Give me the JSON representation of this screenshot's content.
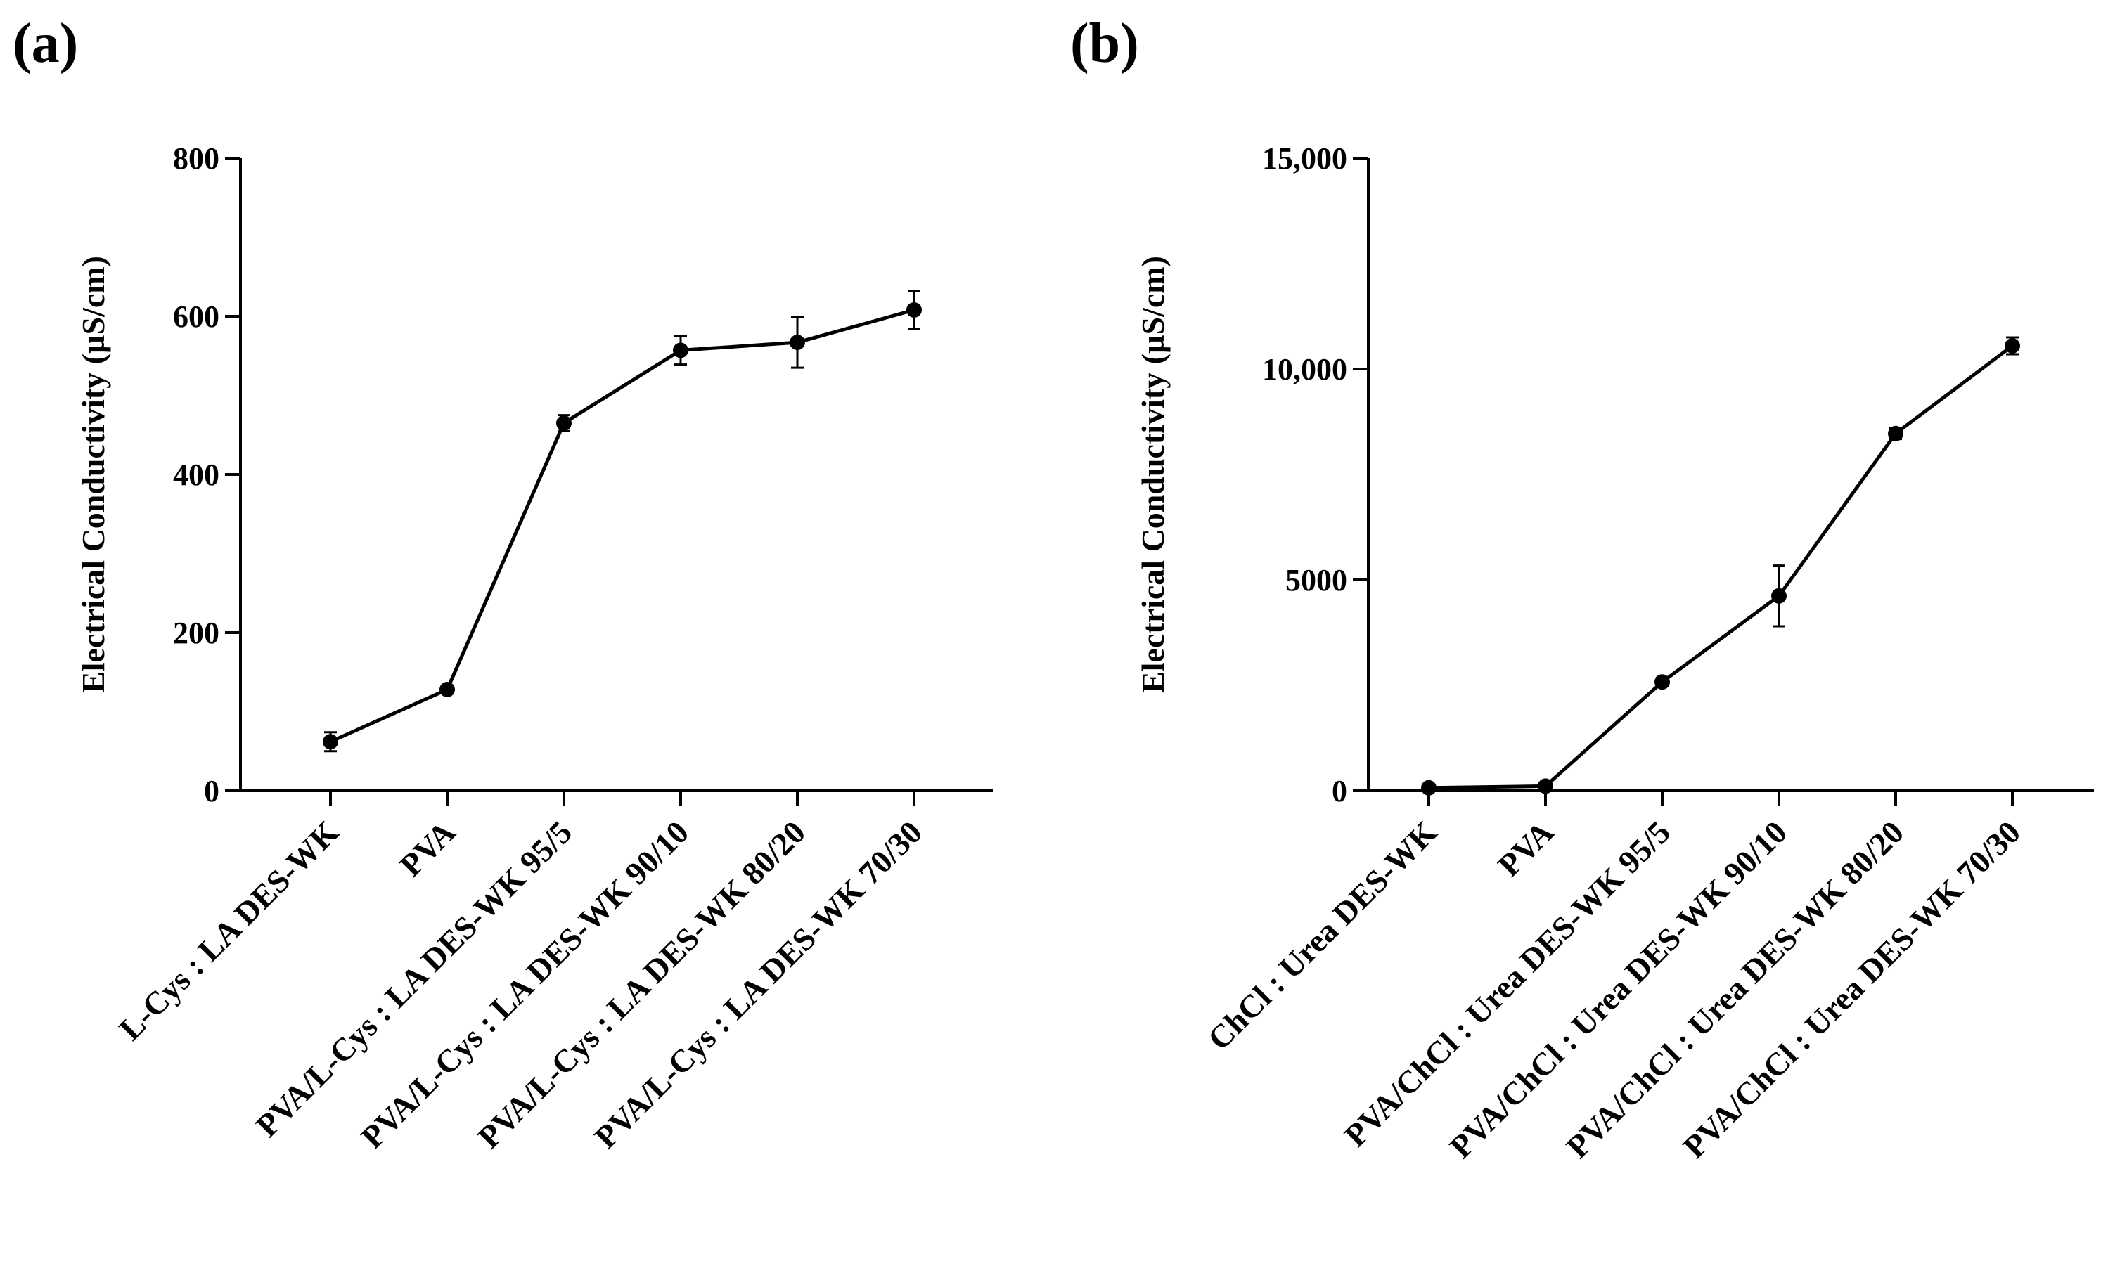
{
  "figure": {
    "panels": [
      {
        "label": "(a)"
      },
      {
        "label": "(b)"
      }
    ]
  },
  "chart_data": [
    {
      "type": "line",
      "panel": "(a)",
      "title": "",
      "xlabel": "",
      "ylabel": "Electrical Conductivity (µS/cm)",
      "ylim": [
        0,
        800
      ],
      "yticks": [
        0,
        200,
        400,
        600,
        800
      ],
      "ytick_labels": [
        "0",
        "200",
        "400",
        "600",
        "800"
      ],
      "categories": [
        "L-Cys : LA DES-WK",
        "PVA",
        "PVA/L-Cys : LA DES-WK 95/5",
        "PVA/L-Cys : LA DES-WK 90/10",
        "PVA/L-Cys : LA DES-WK 80/20",
        "PVA/L-Cys : LA DES-WK 70/30"
      ],
      "values": [
        62,
        128,
        465,
        557,
        567,
        608
      ],
      "errors": [
        12,
        5,
        10,
        18,
        32,
        24
      ],
      "grid": false,
      "legend": "none"
    },
    {
      "type": "line",
      "panel": "(b)",
      "title": "",
      "xlabel": "",
      "ylabel": "Electrical Conductivity (µS/cm)",
      "ylim": [
        0,
        15000
      ],
      "yticks": [
        0,
        5000,
        10000,
        15000
      ],
      "ytick_labels": [
        "0",
        "5000",
        "10,000",
        "15,000"
      ],
      "categories": [
        "ChCl : Urea DES-WK",
        "PVA",
        "PVA/ChCl : Urea DES-WK 95/5",
        "PVA/ChCl : Urea DES-WK 90/10",
        "PVA/ChCl : Urea DES-WK 80/20",
        "PVA/ChCl : Urea DES-WK 70/30"
      ],
      "values": [
        70,
        110,
        2580,
        4620,
        8470,
        10550
      ],
      "errors": [
        40,
        40,
        100,
        720,
        130,
        200
      ],
      "grid": false,
      "legend": "none"
    }
  ]
}
